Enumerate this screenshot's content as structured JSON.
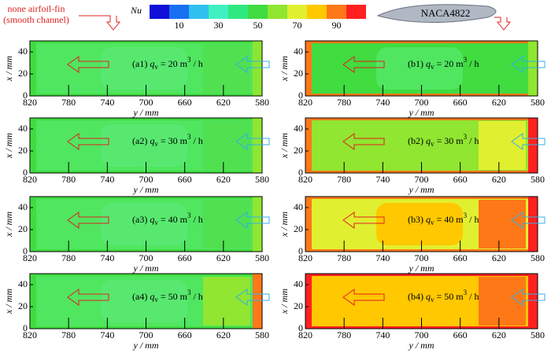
{
  "colorbar": {
    "title": "Nu",
    "colors": [
      "#1010d8",
      "#1870f0",
      "#30c0f0",
      "#40f0c0",
      "#30e880",
      "#40dc40",
      "#90e630",
      "#e0f030",
      "#ffc800",
      "#ff7818",
      "#ff2020"
    ],
    "ticks": [
      10,
      30,
      50,
      70,
      90
    ]
  },
  "left_label": [
    "none airfoil-fin",
    "(smooth channel)"
  ],
  "right_label": "NACA4822",
  "x_axis_label": "x / mm",
  "y_axis_label": "y / mm",
  "xlim": [
    0,
    50
  ],
  "xticks": [
    0,
    20,
    40
  ],
  "ylim": [
    820,
    580
  ],
  "yticks": [
    820,
    780,
    740,
    700,
    660,
    620,
    580
  ],
  "panels": [
    {
      "label_parts": [
        "(a1) ",
        "q",
        "v",
        " = 20 m",
        "3",
        " / h"
      ],
      "zones": [
        "#40dc40",
        "#50e660",
        "#58e870",
        "#50e050",
        "#8ce630"
      ]
    },
    {
      "label_parts": [
        "(b1) ",
        "q",
        "v",
        " = 20 m",
        "3",
        " / h"
      ],
      "zones": [
        "#ff7818",
        "#40dc40",
        "#50e660",
        "#40dc40",
        "#90e630"
      ]
    },
    {
      "label_parts": [
        "(a2) ",
        "q",
        "v",
        " = 30 m",
        "3",
        " / h"
      ],
      "zones": [
        "#40dc40",
        "#50e660",
        "#58e870",
        "#50e050",
        "#90e630"
      ]
    },
    {
      "label_parts": [
        "(b2) ",
        "q",
        "v",
        " = 30 m",
        "3",
        " / h"
      ],
      "zones": [
        "#ff7818",
        "#90e630",
        "#90e630",
        "#e0f030",
        "#ff2020"
      ]
    },
    {
      "label_parts": [
        "(a3) ",
        "q",
        "v",
        " = 40 m",
        "3",
        " / h"
      ],
      "zones": [
        "#40dc40",
        "#50e660",
        "#58e870",
        "#50e050",
        "#90e630"
      ]
    },
    {
      "label_parts": [
        "(b3) ",
        "q",
        "v",
        " = 40 m",
        "3",
        " / h"
      ],
      "zones": [
        "#ff7818",
        "#e0f030",
        "#ffc800",
        "#ff7818",
        "#ff2020"
      ]
    },
    {
      "label_parts": [
        "(a4) ",
        "q",
        "v",
        " = 50 m",
        "3",
        " / h"
      ],
      "zones": [
        "#40dc40",
        "#50e660",
        "#58e870",
        "#90e630",
        "#ff7818"
      ]
    },
    {
      "label_parts": [
        "(b4) ",
        "q",
        "v",
        " = 50 m",
        "3",
        " / h"
      ],
      "zones": [
        "#ff2020",
        "#ffc800",
        "#ffc800",
        "#ff7818",
        "#ff2020"
      ]
    }
  ]
}
